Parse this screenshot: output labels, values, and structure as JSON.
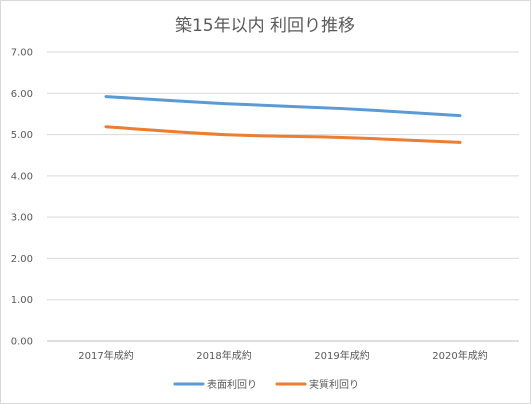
{
  "chart_data": {
    "type": "line",
    "title": "築15年以内 利回り推移",
    "xlabel": "",
    "ylabel": "",
    "categories": [
      "2017年成約",
      "2018年成約",
      "2019年成約",
      "2020年成約"
    ],
    "ylim": [
      0,
      7
    ],
    "yticks": [
      "0.00",
      "1.00",
      "2.00",
      "3.00",
      "4.00",
      "5.00",
      "6.00",
      "7.00"
    ],
    "grid": true,
    "legend_position": "bottom",
    "series": [
      {
        "name": "表面利回り",
        "color": "#5b9bd5",
        "values": [
          5.92,
          5.75,
          5.63,
          5.46
        ]
      },
      {
        "name": "実質利回り",
        "color": "#ed7d31",
        "values": [
          5.19,
          5.0,
          4.93,
          4.81
        ]
      }
    ]
  }
}
